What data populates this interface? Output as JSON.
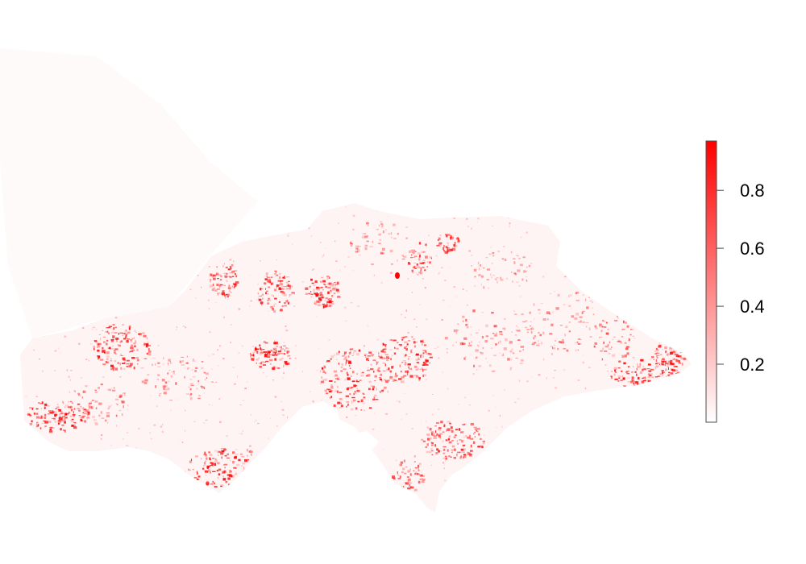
{
  "map": {
    "background_color": "#ffffff",
    "region_fill_color": "#fff4f4",
    "speckle_color": "#ff0000",
    "hotspot_color": "#ff0000"
  },
  "legend": {
    "type": "continuous-colorbar",
    "placement": "right",
    "color_low": "#ffffff",
    "color_high": "#ff0000",
    "value_range": [
      0.0,
      0.97
    ],
    "ticks": [
      {
        "value": 0.2,
        "label": "0.2"
      },
      {
        "value": 0.4,
        "label": "0.4"
      },
      {
        "value": 0.6,
        "label": "0.6"
      },
      {
        "value": 0.8,
        "label": "0.8"
      }
    ]
  }
}
